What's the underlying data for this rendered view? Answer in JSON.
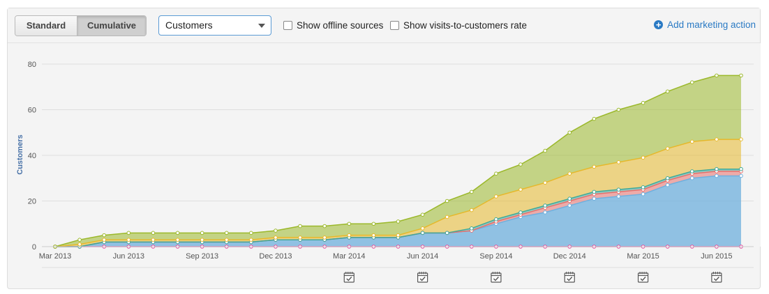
{
  "toolbar": {
    "standard_label": "Standard",
    "cumulative_label": "Cumulative",
    "metric_selected": "Customers",
    "offline_label": "Show offline sources",
    "rate_label": "Show visits-to-customers rate",
    "add_action_label": "Add marketing action"
  },
  "chart_data": {
    "type": "area",
    "stacked": true,
    "ylabel": "Customers",
    "ylim": [
      0,
      80
    ],
    "yticks": [
      0,
      20,
      40,
      60,
      80
    ],
    "x": [
      "Mar 2013",
      "Apr 2013",
      "May 2013",
      "Jun 2013",
      "Jul 2013",
      "Aug 2013",
      "Sep 2013",
      "Oct 2013",
      "Nov 2013",
      "Dec 2013",
      "Jan 2014",
      "Feb 2014",
      "Mar 2014",
      "Apr 2014",
      "May 2014",
      "Jun 2014",
      "Jul 2014",
      "Aug 2014",
      "Sep 2014",
      "Oct 2014",
      "Nov 2014",
      "Dec 2014",
      "Jan 2015",
      "Feb 2015",
      "Mar 2015",
      "Apr 2015",
      "May 2015",
      "Jun 2015",
      "Jul 2015"
    ],
    "xtick_labels": [
      "Mar 2013",
      "Jun 2013",
      "Sep 2013",
      "Dec 2013",
      "Mar 2014",
      "Jun 2014",
      "Sep 2014",
      "Dec 2014",
      "Mar 2015",
      "Jun 2015"
    ],
    "series": [
      {
        "color": "#e04a9a",
        "values": [
          0,
          0,
          0,
          0,
          0,
          0,
          0,
          0,
          0,
          0,
          0,
          0,
          0,
          0,
          0,
          0,
          0,
          0,
          0,
          0,
          0,
          0,
          0,
          0,
          0,
          0,
          0,
          0,
          0
        ]
      },
      {
        "color": "#6fb0de",
        "values": [
          0,
          0,
          2,
          2,
          2,
          2,
          2,
          2,
          2,
          3,
          3,
          3,
          4,
          4,
          4,
          6,
          6,
          7,
          10,
          13,
          15,
          18,
          21,
          22,
          23,
          27,
          30,
          31,
          31
        ]
      },
      {
        "color": "#e8706c",
        "values": [
          0,
          0,
          0,
          0,
          0,
          0,
          0,
          0,
          0,
          0,
          0,
          0,
          0,
          0,
          0,
          0,
          0,
          0,
          1,
          1,
          2,
          2,
          2,
          2,
          2,
          2,
          2,
          2,
          2
        ]
      },
      {
        "color": "#40a898",
        "values": [
          0,
          0,
          0,
          0,
          0,
          0,
          0,
          0,
          0,
          0,
          0,
          0,
          0,
          0,
          0,
          0,
          0,
          1,
          1,
          1,
          1,
          1,
          1,
          1,
          1,
          1,
          1,
          1,
          1
        ]
      },
      {
        "color": "#e6b82a",
        "values": [
          0,
          1,
          1,
          1,
          1,
          1,
          1,
          1,
          1,
          1,
          1,
          1,
          1,
          1,
          1,
          2,
          7,
          8,
          10,
          10,
          10,
          11,
          11,
          12,
          13,
          13,
          13,
          13,
          13
        ]
      },
      {
        "color": "#9bb82a",
        "values": [
          0,
          2,
          2,
          3,
          3,
          3,
          3,
          3,
          3,
          3,
          5,
          5,
          5,
          5,
          6,
          6,
          7,
          8,
          10,
          11,
          14,
          18,
          21,
          23,
          24,
          25,
          26,
          28,
          28
        ]
      }
    ],
    "marketing_action_months": [
      "Mar 2014",
      "Jun 2014",
      "Sep 2014",
      "Dec 2014",
      "Mar 2015",
      "Jun 2015"
    ]
  }
}
